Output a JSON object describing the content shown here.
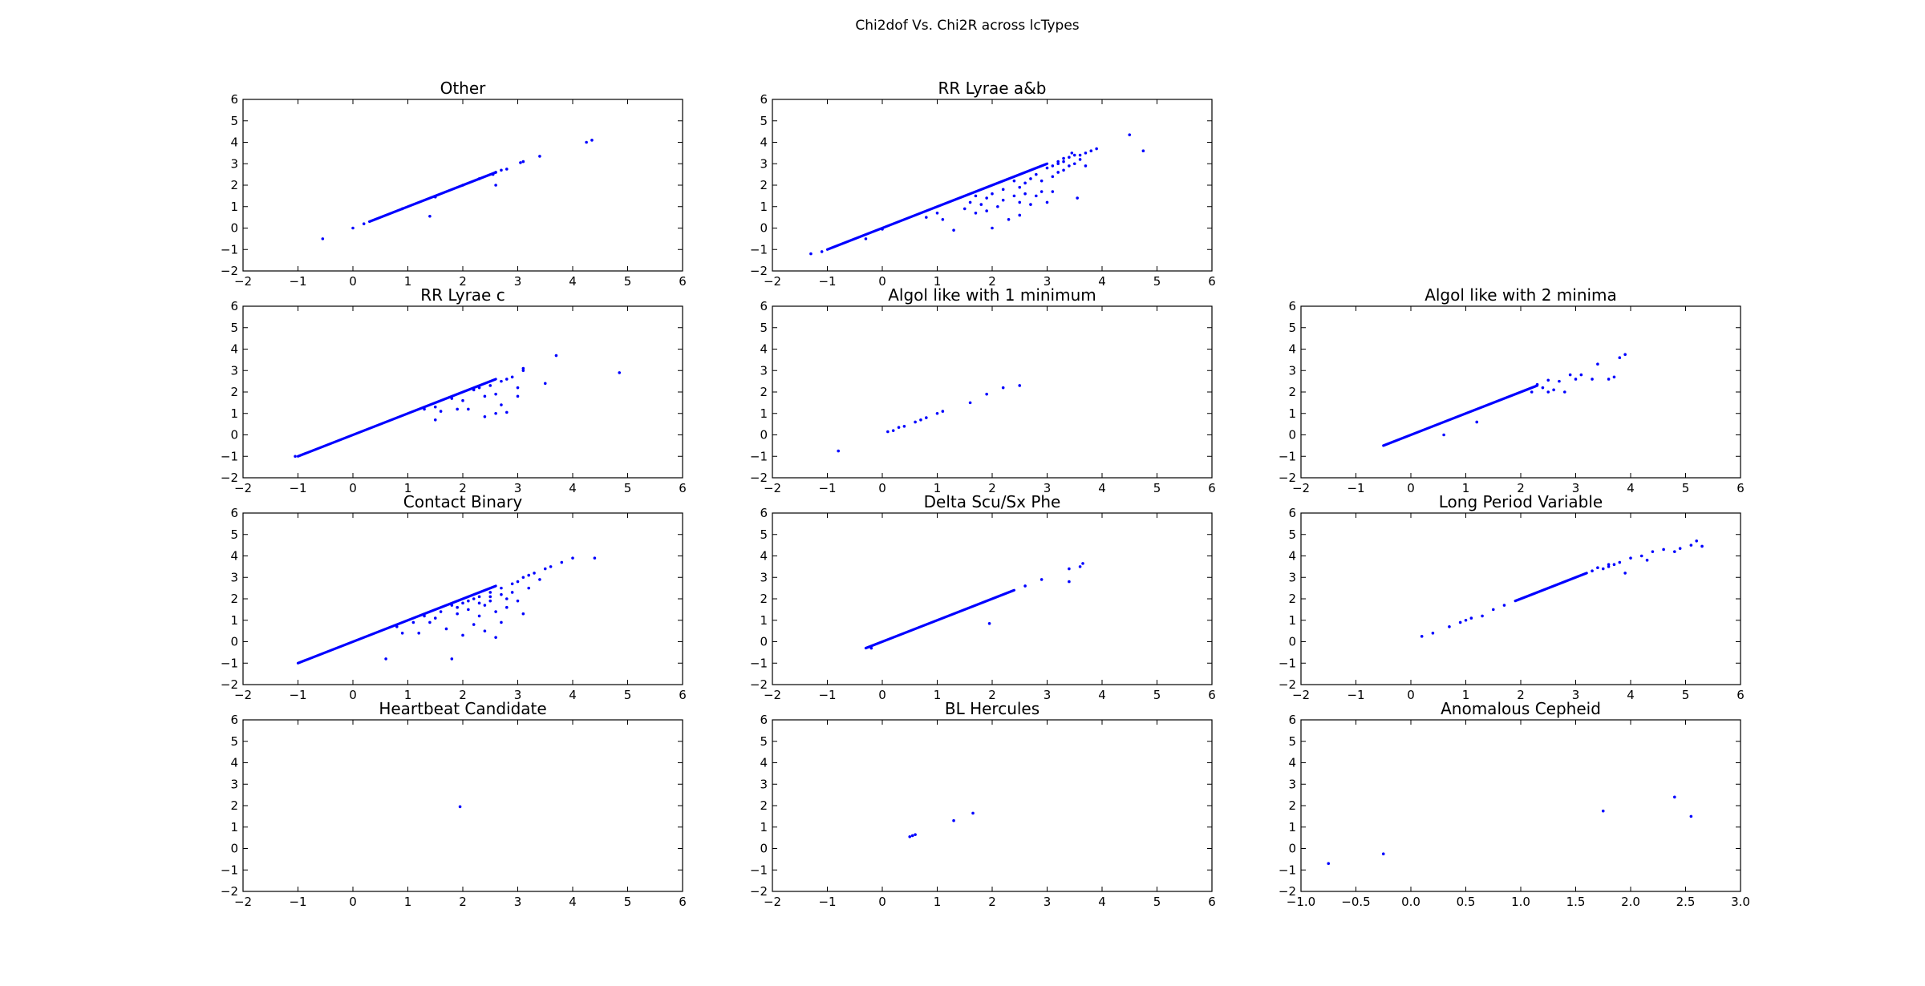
{
  "figure": {
    "suptitle": "Chi2dof Vs. Chi2R across lcTypes"
  },
  "colors": {
    "points": "#0000ff",
    "frame": "#000000"
  },
  "chart_data": [
    {
      "type": "scatter",
      "title": "Other",
      "grid": false,
      "xlim": [
        -2,
        6
      ],
      "ylim": [
        -2,
        6
      ],
      "xticks": [
        "−2",
        "−1",
        "0",
        "1",
        "2",
        "3",
        "4",
        "5",
        "6"
      ],
      "yticks": [
        "−2",
        "−1",
        "0",
        "1",
        "2",
        "3",
        "4",
        "5",
        "6"
      ],
      "line_segments": [
        [
          0.3,
          2.6
        ]
      ],
      "points": [
        [
          -0.55,
          -0.5
        ],
        [
          0.0,
          0.0
        ],
        [
          0.2,
          0.2
        ],
        [
          0.9,
          0.9
        ],
        [
          1.4,
          0.55
        ],
        [
          1.5,
          1.45
        ],
        [
          2.0,
          2.0
        ],
        [
          2.3,
          2.3
        ],
        [
          2.55,
          2.5
        ],
        [
          2.6,
          2.0
        ],
        [
          2.6,
          2.6
        ],
        [
          2.7,
          2.7
        ],
        [
          2.8,
          2.75
        ],
        [
          3.05,
          3.05
        ],
        [
          3.1,
          3.1
        ],
        [
          3.4,
          3.35
        ],
        [
          4.25,
          4.0
        ],
        [
          4.35,
          4.1
        ]
      ]
    },
    {
      "type": "scatter",
      "title": "RR Lyrae a&b",
      "grid": false,
      "xlim": [
        -2,
        6
      ],
      "ylim": [
        -2,
        6
      ],
      "xticks": [
        "−2",
        "−1",
        "0",
        "1",
        "2",
        "3",
        "4",
        "5",
        "6"
      ],
      "yticks": [
        "−2",
        "−1",
        "0",
        "1",
        "2",
        "3",
        "4",
        "5",
        "6"
      ],
      "line_segments": [
        [
          -1.0,
          3.0
        ]
      ],
      "points": [
        [
          -1.3,
          -1.2
        ],
        [
          -1.1,
          -1.1
        ],
        [
          -0.3,
          -0.5
        ],
        [
          0.0,
          -0.05
        ],
        [
          0.8,
          0.5
        ],
        [
          1.0,
          0.7
        ],
        [
          1.1,
          0.4
        ],
        [
          1.3,
          -0.1
        ],
        [
          1.5,
          0.9
        ],
        [
          1.6,
          1.2
        ],
        [
          1.7,
          0.7
        ],
        [
          1.7,
          1.5
        ],
        [
          1.8,
          1.1
        ],
        [
          1.9,
          0.8
        ],
        [
          1.9,
          1.4
        ],
        [
          2.0,
          0.0
        ],
        [
          2.0,
          1.6
        ],
        [
          2.1,
          1.0
        ],
        [
          2.2,
          1.8
        ],
        [
          2.2,
          1.3
        ],
        [
          2.3,
          0.4
        ],
        [
          2.4,
          2.2
        ],
        [
          2.4,
          1.5
        ],
        [
          2.5,
          0.6
        ],
        [
          2.5,
          1.2
        ],
        [
          2.5,
          1.9
        ],
        [
          2.6,
          2.1
        ],
        [
          2.6,
          1.6
        ],
        [
          2.7,
          2.3
        ],
        [
          2.7,
          1.1
        ],
        [
          2.8,
          1.5
        ],
        [
          2.8,
          2.5
        ],
        [
          2.9,
          1.7
        ],
        [
          2.9,
          2.2
        ],
        [
          3.0,
          1.2
        ],
        [
          3.0,
          2.8
        ],
        [
          3.1,
          1.7
        ],
        [
          3.1,
          2.9
        ],
        [
          3.1,
          2.4
        ],
        [
          3.2,
          3.0
        ],
        [
          3.2,
          2.6
        ],
        [
          3.3,
          3.1
        ],
        [
          3.3,
          2.7
        ],
        [
          3.4,
          3.3
        ],
        [
          3.4,
          2.9
        ],
        [
          3.5,
          3.4
        ],
        [
          3.5,
          3.0
        ],
        [
          3.55,
          1.4
        ],
        [
          3.6,
          3.2
        ],
        [
          3.6,
          3.4
        ],
        [
          3.7,
          2.9
        ],
        [
          3.7,
          3.5
        ],
        [
          3.8,
          3.6
        ],
        [
          3.9,
          3.7
        ],
        [
          4.5,
          4.35
        ],
        [
          4.75,
          3.6
        ],
        [
          3.2,
          3.1
        ],
        [
          3.3,
          3.25
        ],
        [
          3.45,
          3.5
        ]
      ]
    },
    {
      "type": "scatter",
      "title": "RR Lyrae c",
      "grid": false,
      "xlim": [
        -2,
        6
      ],
      "ylim": [
        -2,
        6
      ],
      "xticks": [
        "−2",
        "−1",
        "0",
        "1",
        "2",
        "3",
        "4",
        "5",
        "6"
      ],
      "yticks": [
        "−2",
        "−1",
        "0",
        "1",
        "2",
        "3",
        "4",
        "5",
        "6"
      ],
      "line_segments": [
        [
          -1.0,
          2.6
        ]
      ],
      "points": [
        [
          -1.05,
          -1.0
        ],
        [
          1.3,
          1.2
        ],
        [
          1.5,
          0.7
        ],
        [
          1.5,
          1.3
        ],
        [
          1.6,
          1.1
        ],
        [
          1.8,
          1.7
        ],
        [
          1.9,
          1.2
        ],
        [
          2.0,
          1.6
        ],
        [
          2.1,
          1.2
        ],
        [
          2.2,
          2.1
        ],
        [
          2.3,
          2.2
        ],
        [
          2.4,
          0.85
        ],
        [
          2.4,
          1.8
        ],
        [
          2.5,
          2.3
        ],
        [
          2.6,
          1.0
        ],
        [
          2.6,
          1.9
        ],
        [
          2.7,
          2.5
        ],
        [
          2.7,
          1.4
        ],
        [
          2.8,
          1.05
        ],
        [
          2.8,
          2.6
        ],
        [
          2.9,
          2.7
        ],
        [
          3.0,
          1.8
        ],
        [
          3.0,
          2.2
        ],
        [
          3.1,
          3.0
        ],
        [
          3.1,
          3.1
        ],
        [
          3.5,
          2.4
        ],
        [
          3.7,
          3.7
        ],
        [
          4.85,
          2.9
        ]
      ]
    },
    {
      "type": "scatter",
      "title": "Algol like with 1 minimum",
      "grid": false,
      "xlim": [
        -2,
        6
      ],
      "ylim": [
        -2,
        6
      ],
      "xticks": [
        "−2",
        "−1",
        "0",
        "1",
        "2",
        "3",
        "4",
        "5",
        "6"
      ],
      "yticks": [
        "−2",
        "−1",
        "0",
        "1",
        "2",
        "3",
        "4",
        "5",
        "6"
      ],
      "line_segments": [],
      "points": [
        [
          -0.8,
          -0.75
        ],
        [
          0.1,
          0.15
        ],
        [
          0.2,
          0.2
        ],
        [
          0.3,
          0.35
        ],
        [
          0.4,
          0.4
        ],
        [
          0.6,
          0.6
        ],
        [
          0.7,
          0.7
        ],
        [
          0.8,
          0.8
        ],
        [
          1.0,
          1.0
        ],
        [
          1.1,
          1.1
        ],
        [
          1.6,
          1.5
        ],
        [
          1.9,
          1.9
        ],
        [
          2.2,
          2.2
        ],
        [
          2.5,
          2.3
        ]
      ]
    },
    {
      "type": "scatter",
      "title": "Algol like with 2 minima",
      "grid": false,
      "xlim": [
        -2,
        6
      ],
      "ylim": [
        -2,
        6
      ],
      "xticks": [
        "−2",
        "−1",
        "0",
        "1",
        "2",
        "3",
        "4",
        "5",
        "6"
      ],
      "yticks": [
        "−2",
        "−1",
        "0",
        "1",
        "2",
        "3",
        "4",
        "5",
        "6"
      ],
      "line_segments": [
        [
          -0.5,
          2.3
        ]
      ],
      "points": [
        [
          0.6,
          0.0
        ],
        [
          1.2,
          0.6
        ],
        [
          2.2,
          2.0
        ],
        [
          2.4,
          2.2
        ],
        [
          2.5,
          2.0
        ],
        [
          2.6,
          2.1
        ],
        [
          2.7,
          2.5
        ],
        [
          2.8,
          2.0
        ],
        [
          2.9,
          2.8
        ],
        [
          3.0,
          2.6
        ],
        [
          3.1,
          2.8
        ],
        [
          3.3,
          2.6
        ],
        [
          3.4,
          3.3
        ],
        [
          3.6,
          2.6
        ],
        [
          3.7,
          2.7
        ],
        [
          3.8,
          3.6
        ],
        [
          3.9,
          3.75
        ],
        [
          2.3,
          2.35
        ],
        [
          2.5,
          2.55
        ]
      ]
    },
    {
      "type": "scatter",
      "title": "Contact Binary",
      "grid": false,
      "xlim": [
        -2,
        6
      ],
      "ylim": [
        -2,
        6
      ],
      "xticks": [
        "−2",
        "−1",
        "0",
        "1",
        "2",
        "3",
        "4",
        "5",
        "6"
      ],
      "yticks": [
        "−2",
        "−1",
        "0",
        "1",
        "2",
        "3",
        "4",
        "5",
        "6"
      ],
      "line_segments": [
        [
          -1.0,
          2.6
        ]
      ],
      "points": [
        [
          0.6,
          -0.8
        ],
        [
          0.8,
          0.7
        ],
        [
          0.9,
          0.4
        ],
        [
          1.1,
          0.9
        ],
        [
          1.2,
          0.4
        ],
        [
          1.3,
          1.2
        ],
        [
          1.4,
          0.9
        ],
        [
          1.5,
          1.1
        ],
        [
          1.6,
          1.4
        ],
        [
          1.7,
          0.6
        ],
        [
          1.8,
          -0.8
        ],
        [
          1.8,
          1.7
        ],
        [
          1.9,
          1.3
        ],
        [
          2.0,
          0.3
        ],
        [
          2.0,
          1.8
        ],
        [
          2.1,
          1.5
        ],
        [
          2.2,
          0.8
        ],
        [
          2.2,
          2.0
        ],
        [
          2.3,
          1.2
        ],
        [
          2.3,
          2.1
        ],
        [
          2.4,
          1.7
        ],
        [
          2.4,
          0.5
        ],
        [
          2.5,
          1.9
        ],
        [
          2.5,
          2.3
        ],
        [
          2.6,
          0.2
        ],
        [
          2.6,
          1.4
        ],
        [
          2.7,
          2.5
        ],
        [
          2.7,
          0.9
        ],
        [
          2.8,
          2.0
        ],
        [
          2.8,
          1.6
        ],
        [
          2.9,
          2.7
        ],
        [
          2.9,
          2.3
        ],
        [
          3.0,
          1.9
        ],
        [
          3.0,
          2.8
        ],
        [
          3.1,
          1.3
        ],
        [
          3.1,
          3.0
        ],
        [
          3.2,
          2.5
        ],
        [
          3.2,
          3.1
        ],
        [
          3.3,
          3.2
        ],
        [
          3.4,
          2.9
        ],
        [
          3.5,
          3.4
        ],
        [
          3.6,
          3.5
        ],
        [
          3.8,
          3.7
        ],
        [
          4.0,
          3.9
        ],
        [
          4.4,
          3.9
        ],
        [
          1.9,
          1.6
        ],
        [
          2.1,
          1.9
        ],
        [
          2.3,
          1.8
        ],
        [
          2.5,
          2.1
        ],
        [
          2.7,
          2.2
        ]
      ]
    },
    {
      "type": "scatter",
      "title": "Delta Scu/Sx Phe",
      "grid": false,
      "xlim": [
        -2,
        6
      ],
      "ylim": [
        -2,
        6
      ],
      "xticks": [
        "−2",
        "−1",
        "0",
        "1",
        "2",
        "3",
        "4",
        "5",
        "6"
      ],
      "yticks": [
        "−2",
        "−1",
        "0",
        "1",
        "2",
        "3",
        "4",
        "5",
        "6"
      ],
      "line_segments": [
        [
          -0.3,
          2.4
        ]
      ],
      "points": [
        [
          -0.2,
          -0.3
        ],
        [
          1.95,
          0.85
        ],
        [
          2.6,
          2.6
        ],
        [
          2.9,
          2.9
        ],
        [
          3.4,
          2.8
        ],
        [
          3.4,
          3.4
        ],
        [
          3.6,
          3.5
        ],
        [
          3.65,
          3.65
        ]
      ]
    },
    {
      "type": "scatter",
      "title": "Long Period Variable",
      "grid": false,
      "xlim": [
        -2,
        6
      ],
      "ylim": [
        -2,
        6
      ],
      "xticks": [
        "−2",
        "−1",
        "0",
        "1",
        "2",
        "3",
        "4",
        "5",
        "6"
      ],
      "yticks": [
        "−2",
        "−1",
        "0",
        "1",
        "2",
        "3",
        "4",
        "5",
        "6"
      ],
      "line_segments": [
        [
          1.9,
          3.2
        ]
      ],
      "points": [
        [
          0.2,
          0.25
        ],
        [
          0.4,
          0.4
        ],
        [
          0.7,
          0.7
        ],
        [
          0.9,
          0.9
        ],
        [
          1.0,
          1.0
        ],
        [
          1.1,
          1.1
        ],
        [
          1.3,
          1.2
        ],
        [
          1.5,
          1.5
        ],
        [
          1.7,
          1.7
        ],
        [
          3.3,
          3.3
        ],
        [
          3.5,
          3.4
        ],
        [
          3.6,
          3.5
        ],
        [
          3.7,
          3.6
        ],
        [
          3.8,
          3.7
        ],
        [
          3.9,
          3.2
        ],
        [
          4.0,
          3.9
        ],
        [
          4.2,
          4.0
        ],
        [
          4.3,
          3.8
        ],
        [
          4.4,
          4.2
        ],
        [
          4.6,
          4.3
        ],
        [
          4.8,
          4.2
        ],
        [
          4.9,
          4.35
        ],
        [
          5.1,
          4.5
        ],
        [
          5.2,
          4.7
        ],
        [
          5.3,
          4.45
        ],
        [
          3.4,
          3.45
        ],
        [
          3.6,
          3.6
        ]
      ]
    },
    {
      "type": "scatter",
      "title": "Heartbeat Candidate",
      "grid": false,
      "xlim": [
        -2,
        6
      ],
      "ylim": [
        -2,
        6
      ],
      "xticks": [
        "−2",
        "−1",
        "0",
        "1",
        "2",
        "3",
        "4",
        "5",
        "6"
      ],
      "yticks": [
        "−2",
        "−1",
        "0",
        "1",
        "2",
        "3",
        "4",
        "5",
        "6"
      ],
      "line_segments": [],
      "points": [
        [
          1.95,
          1.95
        ]
      ]
    },
    {
      "type": "scatter",
      "title": "BL Hercules",
      "grid": false,
      "xlim": [
        -2,
        6
      ],
      "ylim": [
        -2,
        6
      ],
      "xticks": [
        "−2",
        "−1",
        "0",
        "1",
        "2",
        "3",
        "4",
        "5",
        "6"
      ],
      "yticks": [
        "−2",
        "−1",
        "0",
        "1",
        "2",
        "3",
        "4",
        "5",
        "6"
      ],
      "line_segments": [],
      "points": [
        [
          0.5,
          0.55
        ],
        [
          0.55,
          0.6
        ],
        [
          0.6,
          0.65
        ],
        [
          1.3,
          1.3
        ],
        [
          1.65,
          1.65
        ]
      ]
    },
    {
      "type": "scatter",
      "title": "Anomalous Cepheid",
      "grid": false,
      "xlim": [
        -1.0,
        3.0
      ],
      "ylim": [
        -2,
        6
      ],
      "xticks": [
        "−1.0",
        "−0.5",
        "0.0",
        "0.5",
        "1.0",
        "1.5",
        "2.0",
        "2.5",
        "3.0"
      ],
      "yticks": [
        "−2",
        "−1",
        "0",
        "1",
        "2",
        "3",
        "4",
        "5",
        "6"
      ],
      "line_segments": [],
      "points": [
        [
          -0.75,
          -0.7
        ],
        [
          -0.25,
          -0.25
        ],
        [
          1.75,
          1.75
        ],
        [
          2.4,
          2.4
        ],
        [
          2.55,
          1.5
        ]
      ]
    }
  ]
}
